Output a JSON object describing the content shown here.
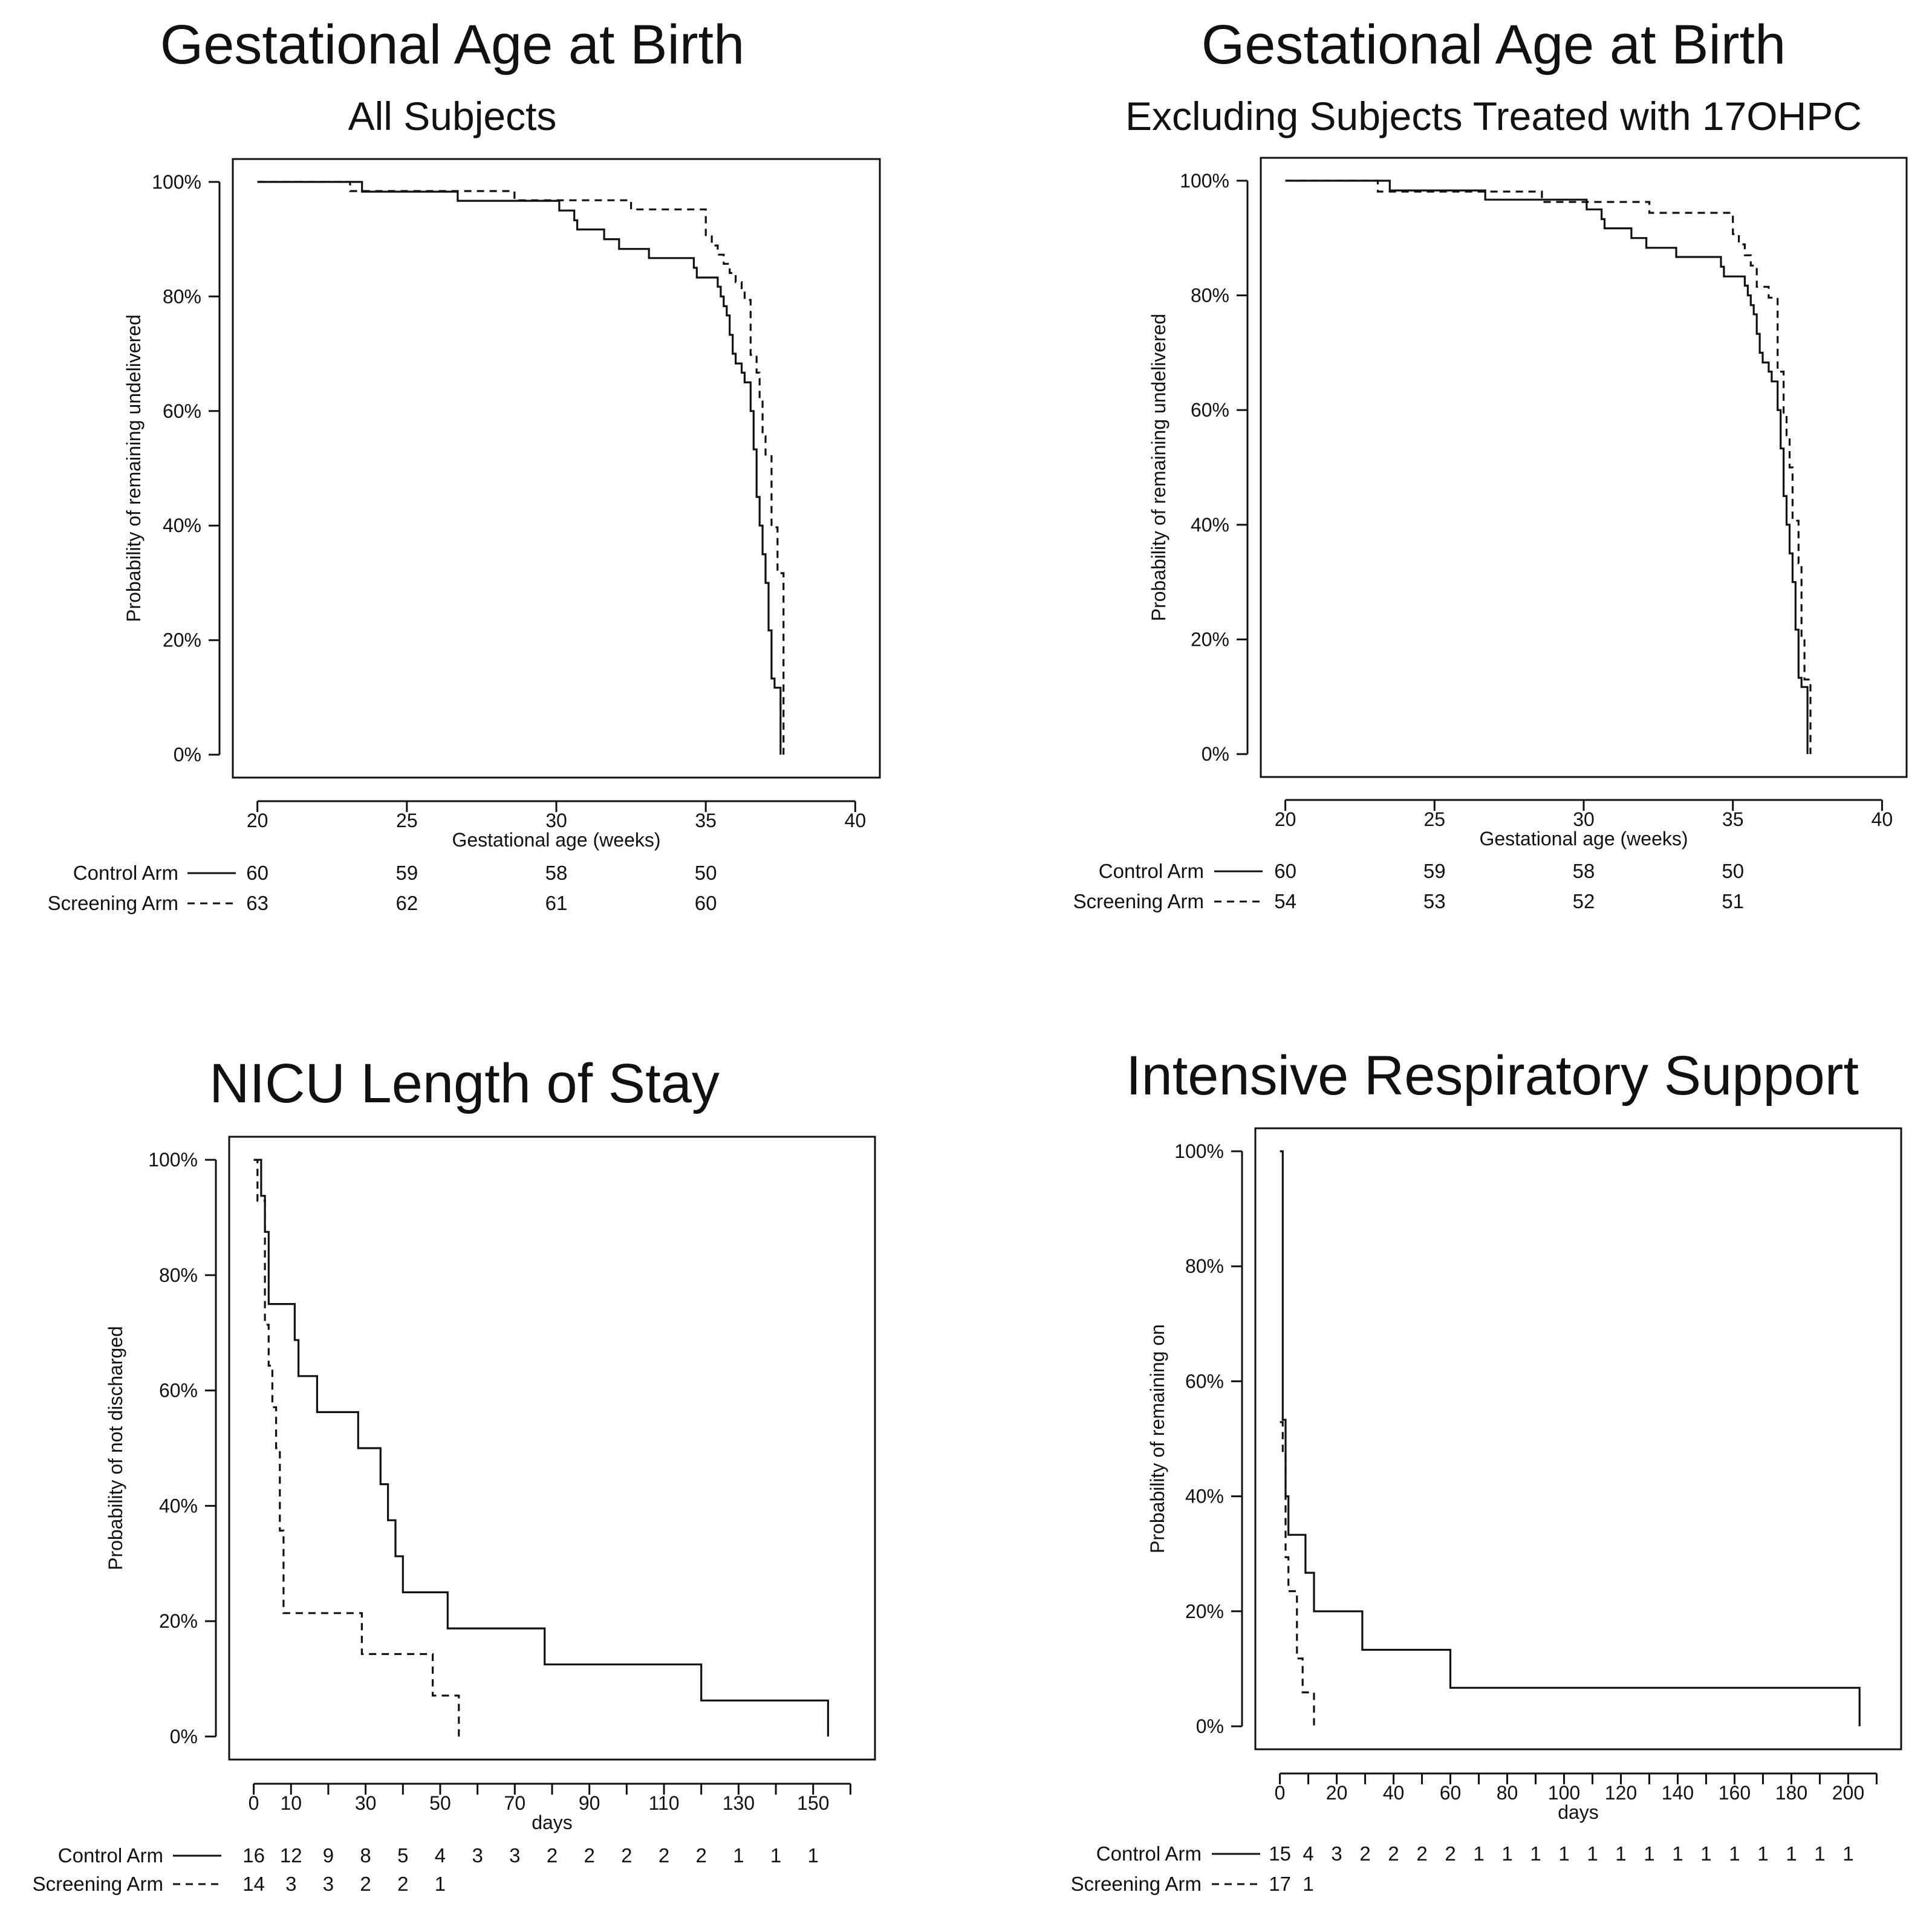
{
  "chart_data": [
    {
      "type": "line",
      "chart_kind": "kaplan-meier",
      "title": "Gestational Age at Birth",
      "subtitle": "All Subjects",
      "xlabel": "Gestational age (weeks)",
      "ylabel": "Probability of remaining undelivered",
      "xlim": [
        20,
        40
      ],
      "ylim": [
        0,
        1
      ],
      "x_ticks": [
        "20",
        "25",
        "30",
        "35",
        "40"
      ],
      "y_ticks": [
        "0%",
        "20%",
        "40%",
        "60%",
        "80%",
        "100%"
      ],
      "grid": false,
      "series": [
        {
          "name": "Control Arm",
          "style": "solid",
          "x": [
            20,
            23.5,
            26.7,
            30.1,
            30.6,
            30.7,
            30.9,
            31.6,
            32.1,
            32.6,
            33.1,
            33.3,
            34.6,
            34.7,
            34.8,
            35.2,
            35.4,
            35.5,
            35.6,
            35.7,
            35.8,
            35.9,
            36.0,
            36.2,
            36.3,
            36.5,
            36.6,
            36.7,
            36.8,
            36.9,
            37.0,
            37.1,
            37.2,
            37.3,
            37.5
          ],
          "y": [
            1.0,
            0.983,
            0.967,
            0.95,
            0.933,
            0.917,
            0.917,
            0.9,
            0.883,
            0.883,
            0.867,
            0.867,
            0.85,
            0.833,
            0.833,
            0.833,
            0.817,
            0.8,
            0.783,
            0.767,
            0.733,
            0.7,
            0.683,
            0.667,
            0.65,
            0.6,
            0.533,
            0.45,
            0.4,
            0.35,
            0.3,
            0.217,
            0.133,
            0.117,
            0.0
          ]
        },
        {
          "name": "Screening Arm",
          "style": "dashed",
          "x": [
            20,
            23.1,
            28.6,
            32.5,
            35.0,
            35.2,
            35.4,
            35.6,
            35.8,
            36.0,
            36.2,
            36.3,
            36.5,
            36.7,
            36.8,
            36.9,
            37.0,
            37.2,
            37.4,
            37.6
          ],
          "y": [
            1.0,
            0.984,
            0.968,
            0.952,
            0.905,
            0.889,
            0.873,
            0.857,
            0.841,
            0.825,
            0.81,
            0.794,
            0.698,
            0.667,
            0.619,
            0.556,
            0.524,
            0.397,
            0.317,
            0.0
          ]
        }
      ],
      "risk_table": {
        "x": [
          "20",
          "25",
          "30",
          "35"
        ],
        "rows": [
          {
            "label": "Control Arm",
            "values": [
              "60",
              "59",
              "58",
              "50"
            ]
          },
          {
            "label": "Screening Arm",
            "values": [
              "63",
              "62",
              "61",
              "60"
            ]
          }
        ]
      }
    },
    {
      "type": "line",
      "chart_kind": "kaplan-meier",
      "title": "Gestational Age at Birth",
      "subtitle": "Excluding Subjects Treated with 17OHPC",
      "xlabel": "Gestational age (weeks)",
      "ylabel": "Probability of remaining undelivered",
      "xlim": [
        20,
        40
      ],
      "ylim": [
        0,
        1
      ],
      "x_ticks": [
        "20",
        "25",
        "30",
        "35",
        "40"
      ],
      "y_ticks": [
        "0%",
        "20%",
        "40%",
        "60%",
        "80%",
        "100%"
      ],
      "grid": false,
      "series": [
        {
          "name": "Control Arm",
          "style": "solid",
          "x": [
            20,
            23.5,
            26.7,
            30.1,
            30.6,
            30.7,
            30.9,
            31.6,
            32.1,
            32.6,
            33.1,
            33.3,
            34.6,
            34.7,
            34.8,
            35.2,
            35.4,
            35.5,
            35.6,
            35.7,
            35.8,
            35.9,
            36.0,
            36.2,
            36.3,
            36.5,
            36.6,
            36.7,
            36.8,
            36.9,
            37.0,
            37.1,
            37.2,
            37.3,
            37.5
          ],
          "y": [
            1.0,
            0.983,
            0.967,
            0.95,
            0.933,
            0.917,
            0.917,
            0.9,
            0.883,
            0.883,
            0.867,
            0.867,
            0.85,
            0.833,
            0.833,
            0.833,
            0.817,
            0.8,
            0.783,
            0.767,
            0.733,
            0.7,
            0.683,
            0.667,
            0.65,
            0.6,
            0.533,
            0.45,
            0.4,
            0.35,
            0.3,
            0.217,
            0.133,
            0.117,
            0.0
          ]
        },
        {
          "name": "Screening Arm",
          "style": "dashed",
          "x": [
            20,
            23.1,
            28.6,
            32.2,
            35.0,
            35.2,
            35.4,
            35.6,
            35.8,
            36.0,
            36.2,
            36.5,
            36.7,
            36.8,
            36.9,
            37.0,
            37.2,
            37.3,
            37.4,
            37.6
          ],
          "y": [
            1.0,
            0.981,
            0.963,
            0.944,
            0.907,
            0.889,
            0.87,
            0.852,
            0.815,
            0.815,
            0.796,
            0.667,
            0.593,
            0.556,
            0.5,
            0.407,
            0.333,
            0.204,
            0.13,
            0.0
          ]
        }
      ],
      "risk_table": {
        "x": [
          "20",
          "25",
          "30",
          "35"
        ],
        "rows": [
          {
            "label": "Control Arm",
            "values": [
              "60",
              "59",
              "58",
              "50"
            ]
          },
          {
            "label": "Screening Arm",
            "values": [
              "54",
              "53",
              "52",
              "51"
            ]
          }
        ]
      }
    },
    {
      "type": "line",
      "chart_kind": "kaplan-meier",
      "title": "NICU Length of Stay",
      "subtitle": "",
      "xlabel": "days",
      "ylabel": "Probability of not discharged",
      "xlim": [
        0,
        160
      ],
      "ylim": [
        0,
        1
      ],
      "x_ticks": [
        "0",
        "10",
        "30",
        "50",
        "70",
        "90",
        "110",
        "130",
        "150"
      ],
      "x_minor_ticks": [
        20,
        40,
        60,
        80,
        100,
        120,
        140,
        160
      ],
      "y_ticks": [
        "0%",
        "20%",
        "40%",
        "60%",
        "80%",
        "100%"
      ],
      "grid": false,
      "series": [
        {
          "name": "Control Arm",
          "style": "solid",
          "x": [
            0,
            2,
            3,
            4,
            11,
            12,
            17,
            28,
            34,
            36,
            38,
            40,
            43,
            52,
            78,
            120,
            154
          ],
          "y": [
            1.0,
            0.9375,
            0.875,
            0.75,
            0.6875,
            0.625,
            0.5625,
            0.5,
            0.4375,
            0.375,
            0.3125,
            0.25,
            0.25,
            0.1875,
            0.125,
            0.0625,
            0.0
          ]
        },
        {
          "name": "Screening Arm",
          "style": "dashed",
          "x": [
            0,
            1,
            3,
            4,
            5,
            6,
            7,
            8,
            29,
            48,
            55
          ],
          "y": [
            1.0,
            0.929,
            0.714,
            0.643,
            0.571,
            0.5,
            0.357,
            0.214,
            0.143,
            0.071,
            0.0
          ]
        }
      ],
      "risk_table": {
        "x": [
          "0",
          "10",
          "20",
          "30",
          "40",
          "50",
          "60",
          "70",
          "80",
          "90",
          "100",
          "110",
          "120",
          "130",
          "140",
          "150"
        ],
        "rows": [
          {
            "label": "Control Arm",
            "values": [
              "16",
              "12",
              "9",
              "8",
              "5",
              "4",
              "3",
              "3",
              "2",
              "2",
              "2",
              "2",
              "2",
              "1",
              "1",
              "1"
            ]
          },
          {
            "label": "Screening Arm",
            "values": [
              "14",
              "3",
              "3",
              "2",
              "2",
              "1"
            ]
          }
        ]
      }
    },
    {
      "type": "line",
      "chart_kind": "kaplan-meier",
      "title": "Intensive Respiratory Support",
      "subtitle": "",
      "xlabel": "days",
      "ylabel": "Probability of remaining on",
      "xlim": [
        0,
        210
      ],
      "ylim": [
        0,
        1
      ],
      "x_ticks": [
        "0",
        "20",
        "40",
        "60",
        "80",
        "100",
        "120",
        "140",
        "160",
        "180",
        "200"
      ],
      "x_minor_ticks": [
        10,
        30,
        50,
        70,
        90,
        110,
        130,
        150,
        170,
        190,
        210
      ],
      "y_ticks": [
        "0%",
        "20%",
        "40%",
        "60%",
        "80%",
        "100%"
      ],
      "grid": false,
      "series": [
        {
          "name": "Control Arm",
          "style": "solid",
          "x": [
            0,
            1,
            2,
            3,
            9,
            12,
            29,
            60,
            204
          ],
          "y": [
            1.0,
            0.533,
            0.4,
            0.333,
            0.267,
            0.2,
            0.133,
            0.067,
            0.0
          ]
        },
        {
          "name": "Screening Arm",
          "style": "dashed",
          "x": [
            0,
            1,
            2,
            3,
            4,
            6,
            8,
            10,
            12
          ],
          "y": [
            0.529,
            0.471,
            0.294,
            0.235,
            0.235,
            0.118,
            0.059,
            0.059,
            0.0
          ]
        }
      ],
      "risk_table": {
        "x": [
          "0",
          "10",
          "20",
          "30",
          "40",
          "50",
          "60",
          "70",
          "80",
          "90",
          "100",
          "110",
          "120",
          "130",
          "140",
          "150",
          "160",
          "170",
          "180",
          "190",
          "200"
        ],
        "rows": [
          {
            "label": "Control Arm",
            "values": [
              "15",
              "4",
              "3",
              "2",
              "2",
              "2",
              "2",
              "1",
              "1",
              "1",
              "1",
              "1",
              "1",
              "1",
              "1",
              "1",
              "1",
              "1",
              "1",
              "1",
              "1"
            ]
          },
          {
            "label": "Screening Arm",
            "values": [
              "17",
              "1"
            ]
          }
        ]
      }
    }
  ]
}
